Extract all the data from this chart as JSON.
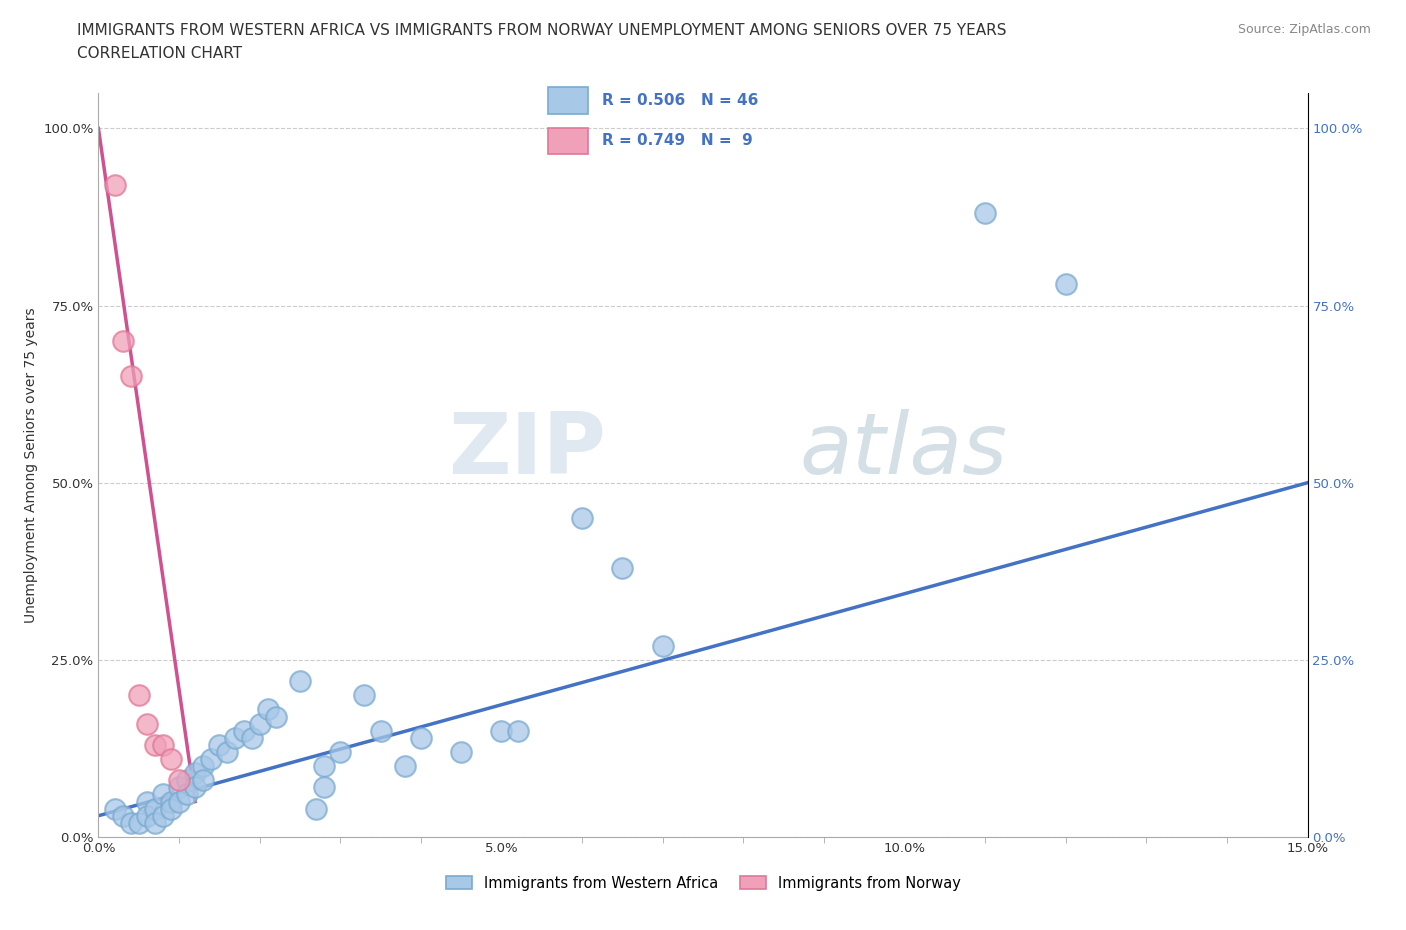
{
  "title_line1": "IMMIGRANTS FROM WESTERN AFRICA VS IMMIGRANTS FROM NORWAY UNEMPLOYMENT AMONG SENIORS OVER 75 YEARS",
  "title_line2": "CORRELATION CHART",
  "source": "Source: ZipAtlas.com",
  "ylabel": "Unemployment Among Seniors over 75 years",
  "xlim": [
    0.0,
    0.15
  ],
  "ylim": [
    0.0,
    1.05
  ],
  "x_ticks": [
    0.0,
    0.05,
    0.1,
    0.15
  ],
  "x_tick_labels": [
    "0.0%",
    "5.0%",
    "10.0%",
    "15.0%"
  ],
  "y_ticks": [
    0.0,
    0.25,
    0.5,
    0.75,
    1.0
  ],
  "y_tick_labels": [
    "0.0%",
    "25.0%",
    "50.0%",
    "75.0%",
    "100.0%"
  ],
  "right_y_tick_labels": [
    "0.0%",
    "25.0%",
    "50.0%",
    "75.0%",
    "100.0%"
  ],
  "blue_R": 0.506,
  "blue_N": 46,
  "pink_R": 0.749,
  "pink_N": 9,
  "blue_color": "#a8c8e8",
  "pink_color": "#f0a0b8",
  "blue_edge_color": "#7aaad0",
  "pink_edge_color": "#e07898",
  "blue_line_color": "#4472c4",
  "pink_line_color": "#d05090",
  "right_tick_color": "#4472c4",
  "blue_scatter": [
    [
      0.002,
      0.04
    ],
    [
      0.003,
      0.03
    ],
    [
      0.004,
      0.02
    ],
    [
      0.005,
      0.02
    ],
    [
      0.006,
      0.05
    ],
    [
      0.006,
      0.03
    ],
    [
      0.007,
      0.04
    ],
    [
      0.007,
      0.02
    ],
    [
      0.008,
      0.06
    ],
    [
      0.008,
      0.03
    ],
    [
      0.009,
      0.05
    ],
    [
      0.009,
      0.04
    ],
    [
      0.01,
      0.07
    ],
    [
      0.01,
      0.05
    ],
    [
      0.011,
      0.08
    ],
    [
      0.011,
      0.06
    ],
    [
      0.012,
      0.09
    ],
    [
      0.012,
      0.07
    ],
    [
      0.013,
      0.1
    ],
    [
      0.013,
      0.08
    ],
    [
      0.014,
      0.11
    ],
    [
      0.015,
      0.13
    ],
    [
      0.016,
      0.12
    ],
    [
      0.017,
      0.14
    ],
    [
      0.018,
      0.15
    ],
    [
      0.019,
      0.14
    ],
    [
      0.02,
      0.16
    ],
    [
      0.021,
      0.18
    ],
    [
      0.022,
      0.17
    ],
    [
      0.025,
      0.22
    ],
    [
      0.027,
      0.04
    ],
    [
      0.028,
      0.1
    ],
    [
      0.028,
      0.07
    ],
    [
      0.03,
      0.12
    ],
    [
      0.033,
      0.2
    ],
    [
      0.035,
      0.15
    ],
    [
      0.038,
      0.1
    ],
    [
      0.04,
      0.14
    ],
    [
      0.045,
      0.12
    ],
    [
      0.05,
      0.15
    ],
    [
      0.052,
      0.15
    ],
    [
      0.06,
      0.45
    ],
    [
      0.065,
      0.38
    ],
    [
      0.07,
      0.27
    ],
    [
      0.11,
      0.88
    ],
    [
      0.12,
      0.78
    ]
  ],
  "pink_scatter": [
    [
      0.002,
      0.92
    ],
    [
      0.003,
      0.7
    ],
    [
      0.004,
      0.65
    ],
    [
      0.005,
      0.2
    ],
    [
      0.006,
      0.16
    ],
    [
      0.007,
      0.13
    ],
    [
      0.008,
      0.13
    ],
    [
      0.009,
      0.11
    ],
    [
      0.01,
      0.08
    ]
  ],
  "blue_trendline": [
    [
      0.0,
      0.03
    ],
    [
      0.15,
      0.5
    ]
  ],
  "pink_trendline": [
    [
      0.0,
      1.0
    ],
    [
      0.012,
      0.05
    ]
  ],
  "watermark_zip": "ZIP",
  "watermark_atlas": "atlas",
  "legend_blue_label": "Immigrants from Western Africa",
  "legend_pink_label": "Immigrants from Norway",
  "title_fontsize": 11,
  "axis_label_fontsize": 10,
  "tick_fontsize": 9.5,
  "source_fontsize": 9,
  "scatter_size": 220,
  "scatter_linewidth": 1.5
}
